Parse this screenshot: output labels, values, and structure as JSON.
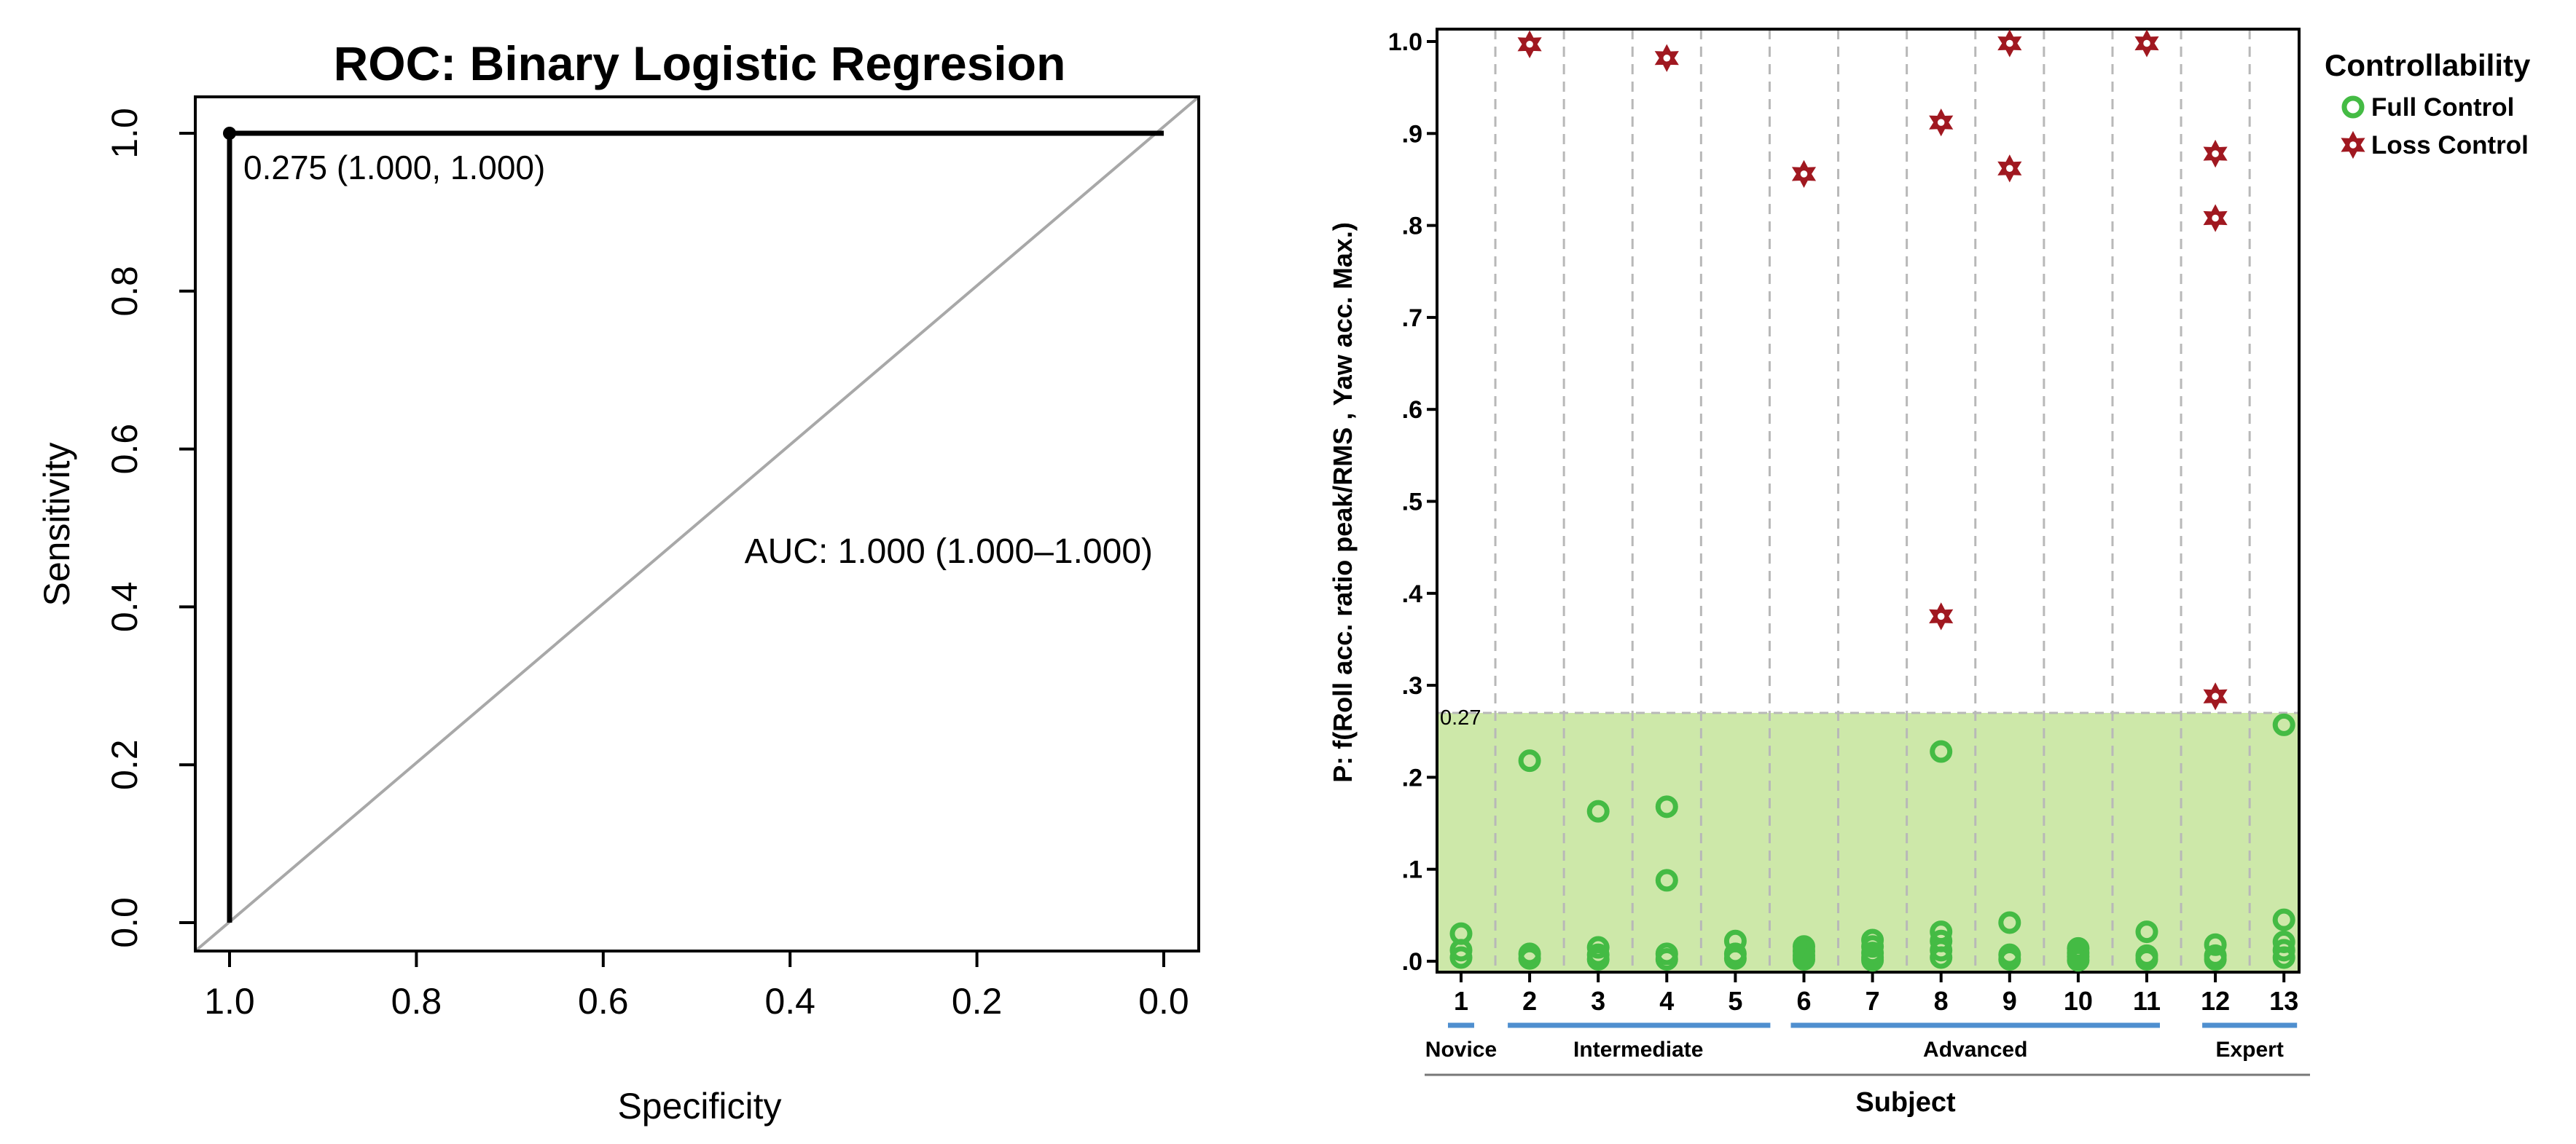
{
  "colors": {
    "full_control": "#44bb44",
    "loss_control": "#a01820",
    "threshold_fill": "#c8e6a0",
    "group_line": "#4f8fcf",
    "diagonal": "#a8a8a8",
    "grid": "#b8b8b8",
    "ink": "#000000"
  },
  "chart_data": [
    {
      "type": "line",
      "title": "ROC: Binary Logistic Regresion",
      "xlabel": "Specificity",
      "ylabel": "Sensitivity",
      "xlim": [
        1.0,
        0.0
      ],
      "ylim": [
        0.0,
        1.0
      ],
      "xticks": [
        1.0,
        0.8,
        0.6,
        0.4,
        0.2,
        0.0
      ],
      "xtick_labels": [
        "1.0",
        "0.8",
        "0.6",
        "0.4",
        "0.2",
        "0.0"
      ],
      "yticks": [
        0.0,
        0.2,
        0.4,
        0.6,
        0.8,
        1.0
      ],
      "ytick_labels": [
        "0.0",
        "0.2",
        "0.4",
        "0.6",
        "0.8",
        "1.0"
      ],
      "series": [
        {
          "name": "ROC curve",
          "points": [
            [
              1.0,
              0.0
            ],
            [
              1.0,
              1.0
            ],
            [
              0.0,
              1.0
            ]
          ]
        },
        {
          "name": "chance",
          "points": [
            [
              1.0,
              0.0
            ],
            [
              0.0,
              1.0
            ]
          ]
        }
      ],
      "best_threshold": {
        "specificity": 1.0,
        "sensitivity": 1.0,
        "label": "0.275 (1.000, 1.000)"
      },
      "auc_label": "AUC: 1.000 (1.000–1.000)"
    },
    {
      "type": "scatter",
      "xlabel": "Subject",
      "ylabel": "P: f(Roll acc. ratio peak/RMS , Yaw acc. Max.)",
      "ylim": [
        0.0,
        1.0
      ],
      "yticks": [
        0.0,
        0.1,
        0.2,
        0.3,
        0.4,
        0.5,
        0.6,
        0.7,
        0.8,
        0.9,
        1.0
      ],
      "ytick_labels": [
        ".0",
        ".1",
        ".2",
        ".3",
        ".4",
        ".5",
        ".6",
        ".7",
        ".8",
        ".9",
        "1.0"
      ],
      "categories": [
        "1",
        "2",
        "3",
        "4",
        "5",
        "6",
        "7",
        "8",
        "9",
        "10",
        "11",
        "12",
        "13"
      ],
      "threshold": {
        "value": 0.27,
        "label": "0.27"
      },
      "legend": {
        "title": "Controllability",
        "position": "right",
        "entries": [
          {
            "label": "Full Control",
            "series": "Full Control"
          },
          {
            "label": "Loss Control",
            "series": "Loss Control"
          }
        ]
      },
      "groups": [
        {
          "label": "Novice",
          "from": 1,
          "to": 1
        },
        {
          "label": "Intermediate",
          "from": 2,
          "to": 5
        },
        {
          "label": "Advanced",
          "from": 6,
          "to": 11
        },
        {
          "label": "Expert",
          "from": 12,
          "to": 13
        }
      ],
      "series": [
        {
          "name": "Full Control",
          "marker": "circle",
          "points": [
            [
              1,
              0.03
            ],
            [
              1,
              0.012
            ],
            [
              1,
              0.004
            ],
            [
              2,
              0.218
            ],
            [
              2,
              0.008
            ],
            [
              2,
              0.003
            ],
            [
              3,
              0.163
            ],
            [
              3,
              0.015
            ],
            [
              3,
              0.007
            ],
            [
              3,
              0.002
            ],
            [
              4,
              0.168
            ],
            [
              4,
              0.088
            ],
            [
              4,
              0.008
            ],
            [
              4,
              0.002
            ],
            [
              5,
              0.022
            ],
            [
              5,
              0.008
            ],
            [
              5,
              0.003
            ],
            [
              6,
              0.016
            ],
            [
              6,
              0.011
            ],
            [
              6,
              0.006
            ],
            [
              6,
              0.002
            ],
            [
              7,
              0.023
            ],
            [
              7,
              0.016
            ],
            [
              7,
              0.009
            ],
            [
              7,
              0.004
            ],
            [
              7,
              0.001
            ],
            [
              8,
              0.228
            ],
            [
              8,
              0.032
            ],
            [
              8,
              0.022
            ],
            [
              8,
              0.012
            ],
            [
              8,
              0.004
            ],
            [
              9,
              0.042
            ],
            [
              9,
              0.007
            ],
            [
              9,
              0.002
            ],
            [
              10,
              0.014
            ],
            [
              10,
              0.009
            ],
            [
              10,
              0.005
            ],
            [
              10,
              0.001
            ],
            [
              11,
              0.032
            ],
            [
              11,
              0.006
            ],
            [
              11,
              0.002
            ],
            [
              12,
              0.018
            ],
            [
              12,
              0.006
            ],
            [
              12,
              0.002
            ],
            [
              13,
              0.257
            ],
            [
              13,
              0.045
            ],
            [
              13,
              0.021
            ],
            [
              13,
              0.012
            ],
            [
              13,
              0.004
            ]
          ]
        },
        {
          "name": "Loss Control",
          "marker": "asterisk",
          "points": [
            [
              2,
              0.997
            ],
            [
              4,
              0.982
            ],
            [
              6,
              0.856
            ],
            [
              8,
              0.912
            ],
            [
              8,
              0.375
            ],
            [
              9,
              0.998
            ],
            [
              9,
              0.862
            ],
            [
              11,
              0.998
            ],
            [
              12,
              0.878
            ],
            [
              12,
              0.808
            ],
            [
              12,
              0.288
            ]
          ]
        }
      ]
    }
  ]
}
